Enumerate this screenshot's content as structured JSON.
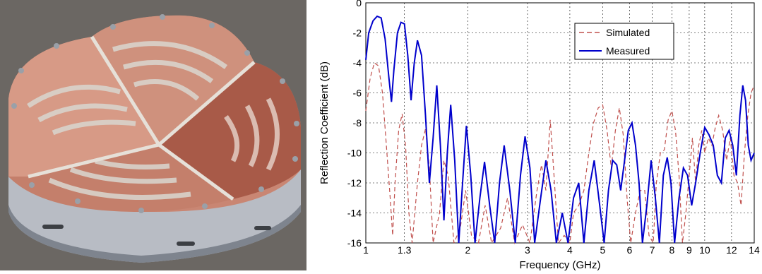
{
  "photo": {
    "icon": "spiral-antenna-photo",
    "colors": {
      "substrate": "#c98673",
      "substrate_dark": "#a85a48",
      "metal": "#d9d3cb",
      "housing": "#b8bcc4",
      "housing_dark": "#7e848e",
      "background": "#6b6763"
    }
  },
  "chart_data": {
    "type": "line",
    "xlabel": "Frequency (GHz)",
    "ylabel": "Reflection Coefficient (dB)",
    "xscale": "log",
    "xlim": [
      1,
      14
    ],
    "ylim": [
      -16,
      0
    ],
    "xticks": [
      1,
      1.3,
      2,
      3,
      4,
      5,
      6,
      7,
      8,
      9,
      10,
      12,
      14
    ],
    "xtick_labels": [
      "1",
      "1.3",
      "2",
      "3",
      "4",
      "5",
      "6",
      "7",
      "8",
      "9",
      "10",
      "12",
      "14"
    ],
    "yticks": [
      0,
      -2,
      -4,
      -6,
      -8,
      -10,
      -12,
      -14,
      -16
    ],
    "ytick_labels": [
      "0",
      "-2",
      "-4",
      "-6",
      "-8",
      "-10",
      "-12",
      "-14",
      "-16"
    ],
    "grid": true,
    "legend_position": "top-right",
    "series": [
      {
        "name": "Simulated",
        "color": "#c0504d",
        "dash": "dashed",
        "points": [
          [
            1.0,
            -7.2
          ],
          [
            1.03,
            -5.0
          ],
          [
            1.06,
            -4.0
          ],
          [
            1.09,
            -4.2
          ],
          [
            1.12,
            -6.0
          ],
          [
            1.15,
            -9.5
          ],
          [
            1.18,
            -13.0
          ],
          [
            1.2,
            -15.5
          ],
          [
            1.22,
            -12.0
          ],
          [
            1.25,
            -8.5
          ],
          [
            1.28,
            -7.4
          ],
          [
            1.31,
            -9.5
          ],
          [
            1.34,
            -14.0
          ],
          [
            1.37,
            -16.0
          ],
          [
            1.42,
            -12.0
          ],
          [
            1.46,
            -9.5
          ],
          [
            1.5,
            -8.4
          ],
          [
            1.54,
            -11.0
          ],
          [
            1.58,
            -16.0
          ],
          [
            1.65,
            -14.0
          ],
          [
            1.7,
            -10.5
          ],
          [
            1.75,
            -11.5
          ],
          [
            1.82,
            -16.0
          ],
          [
            1.9,
            -15.0
          ],
          [
            1.97,
            -12.5
          ],
          [
            2.05,
            -15.5
          ],
          [
            2.15,
            -16.0
          ],
          [
            2.25,
            -13.5
          ],
          [
            2.35,
            -16.0
          ],
          [
            2.5,
            -15.0
          ],
          [
            2.62,
            -13.0
          ],
          [
            2.75,
            -16.0
          ],
          [
            2.9,
            -14.8
          ],
          [
            3.05,
            -16.0
          ],
          [
            3.2,
            -12.5
          ],
          [
            3.3,
            -10.8
          ],
          [
            3.4,
            -12.5
          ],
          [
            3.5,
            -7.8
          ],
          [
            3.58,
            -11.0
          ],
          [
            3.7,
            -16.0
          ],
          [
            3.85,
            -15.5
          ],
          [
            4.0,
            -16.0
          ],
          [
            4.1,
            -14.0
          ],
          [
            4.25,
            -13.5
          ],
          [
            4.4,
            -12.5
          ],
          [
            4.55,
            -10.0
          ],
          [
            4.7,
            -8.0
          ],
          [
            4.85,
            -7.0
          ],
          [
            5.0,
            -6.8
          ],
          [
            5.15,
            -8.5
          ],
          [
            5.3,
            -11.0
          ],
          [
            5.45,
            -8.5
          ],
          [
            5.6,
            -7.0
          ],
          [
            5.75,
            -8.8
          ],
          [
            5.9,
            -13.0
          ],
          [
            6.05,
            -16.0
          ],
          [
            6.25,
            -14.0
          ],
          [
            6.45,
            -12.5
          ],
          [
            6.65,
            -12.5
          ],
          [
            6.85,
            -15.5
          ],
          [
            7.05,
            -16.0
          ],
          [
            7.2,
            -12.0
          ],
          [
            7.4,
            -10.0
          ],
          [
            7.6,
            -9.8
          ],
          [
            7.8,
            -7.8
          ],
          [
            8.0,
            -7.2
          ],
          [
            8.2,
            -8.5
          ],
          [
            8.4,
            -11.5
          ],
          [
            8.6,
            -16.0
          ],
          [
            8.8,
            -14.0
          ],
          [
            9.0,
            -11.5
          ],
          [
            9.2,
            -9.0
          ],
          [
            9.4,
            -12.0
          ],
          [
            9.6,
            -9.5
          ],
          [
            9.8,
            -8.5
          ],
          [
            10.0,
            -10.0
          ],
          [
            10.25,
            -9.0
          ],
          [
            10.5,
            -9.5
          ],
          [
            10.75,
            -8.3
          ],
          [
            11.0,
            -7.5
          ],
          [
            11.3,
            -8.5
          ],
          [
            11.6,
            -10.5
          ],
          [
            11.9,
            -9.0
          ],
          [
            12.2,
            -11.5
          ],
          [
            12.5,
            -12.0
          ],
          [
            12.8,
            -13.5
          ],
          [
            13.1,
            -10.0
          ],
          [
            13.4,
            -7.5
          ],
          [
            13.7,
            -6.0
          ],
          [
            14.0,
            -5.5
          ]
        ]
      },
      {
        "name": "Measured",
        "color": "#0000cc",
        "dash": "solid",
        "points": [
          [
            1.0,
            -3.8
          ],
          [
            1.02,
            -2.0
          ],
          [
            1.05,
            -1.2
          ],
          [
            1.08,
            -0.9
          ],
          [
            1.11,
            -1.0
          ],
          [
            1.14,
            -2.4
          ],
          [
            1.17,
            -5.0
          ],
          [
            1.19,
            -6.6
          ],
          [
            1.21,
            -4.5
          ],
          [
            1.24,
            -2.0
          ],
          [
            1.27,
            -1.3
          ],
          [
            1.3,
            -1.4
          ],
          [
            1.33,
            -3.5
          ],
          [
            1.36,
            -6.5
          ],
          [
            1.39,
            -4.0
          ],
          [
            1.42,
            -2.5
          ],
          [
            1.46,
            -3.5
          ],
          [
            1.5,
            -7.5
          ],
          [
            1.54,
            -12.0
          ],
          [
            1.58,
            -9.0
          ],
          [
            1.62,
            -5.5
          ],
          [
            1.66,
            -9.5
          ],
          [
            1.7,
            -14.5
          ],
          [
            1.74,
            -10.0
          ],
          [
            1.78,
            -6.8
          ],
          [
            1.83,
            -10.5
          ],
          [
            1.88,
            -16.0
          ],
          [
            1.93,
            -12.0
          ],
          [
            1.98,
            -8.2
          ],
          [
            2.04,
            -11.5
          ],
          [
            2.1,
            -16.0
          ],
          [
            2.17,
            -13.0
          ],
          [
            2.24,
            -10.6
          ],
          [
            2.32,
            -13.5
          ],
          [
            2.4,
            -16.0
          ],
          [
            2.48,
            -12.0
          ],
          [
            2.56,
            -9.5
          ],
          [
            2.66,
            -12.5
          ],
          [
            2.76,
            -16.0
          ],
          [
            2.86,
            -11.5
          ],
          [
            2.95,
            -8.9
          ],
          [
            3.05,
            -11.0
          ],
          [
            3.15,
            -16.0
          ],
          [
            3.28,
            -13.0
          ],
          [
            3.4,
            -10.5
          ],
          [
            3.52,
            -12.5
          ],
          [
            3.65,
            -16.0
          ],
          [
            3.8,
            -14.0
          ],
          [
            3.95,
            -16.0
          ],
          [
            4.1,
            -13.0
          ],
          [
            4.25,
            -12.0
          ],
          [
            4.4,
            -16.0
          ],
          [
            4.55,
            -12.5
          ],
          [
            4.72,
            -10.5
          ],
          [
            4.9,
            -13.5
          ],
          [
            5.05,
            -16.0
          ],
          [
            5.2,
            -12.5
          ],
          [
            5.35,
            -10.5
          ],
          [
            5.5,
            -10.8
          ],
          [
            5.65,
            -12.5
          ],
          [
            5.8,
            -10.5
          ],
          [
            5.95,
            -8.5
          ],
          [
            6.1,
            -8.0
          ],
          [
            6.25,
            -9.5
          ],
          [
            6.4,
            -12.0
          ],
          [
            6.55,
            -16.0
          ],
          [
            6.75,
            -13.5
          ],
          [
            6.95,
            -10.5
          ],
          [
            7.15,
            -13.0
          ],
          [
            7.35,
            -16.0
          ],
          [
            7.55,
            -11.5
          ],
          [
            7.75,
            -10.3
          ],
          [
            7.95,
            -12.0
          ],
          [
            8.15,
            -16.0
          ],
          [
            8.4,
            -13.0
          ],
          [
            8.65,
            -11.0
          ],
          [
            8.9,
            -11.5
          ],
          [
            9.15,
            -13.5
          ],
          [
            9.4,
            -12.0
          ],
          [
            9.7,
            -10.0
          ],
          [
            10.0,
            -8.3
          ],
          [
            10.3,
            -8.8
          ],
          [
            10.6,
            -9.5
          ],
          [
            10.9,
            -11.5
          ],
          [
            11.2,
            -12.0
          ],
          [
            11.5,
            -9.0
          ],
          [
            11.8,
            -8.5
          ],
          [
            12.1,
            -9.5
          ],
          [
            12.4,
            -11.5
          ],
          [
            12.7,
            -7.5
          ],
          [
            12.95,
            -5.5
          ],
          [
            13.2,
            -6.5
          ],
          [
            13.45,
            -9.5
          ],
          [
            13.7,
            -10.5
          ],
          [
            14.0,
            -10.0
          ]
        ]
      }
    ]
  }
}
